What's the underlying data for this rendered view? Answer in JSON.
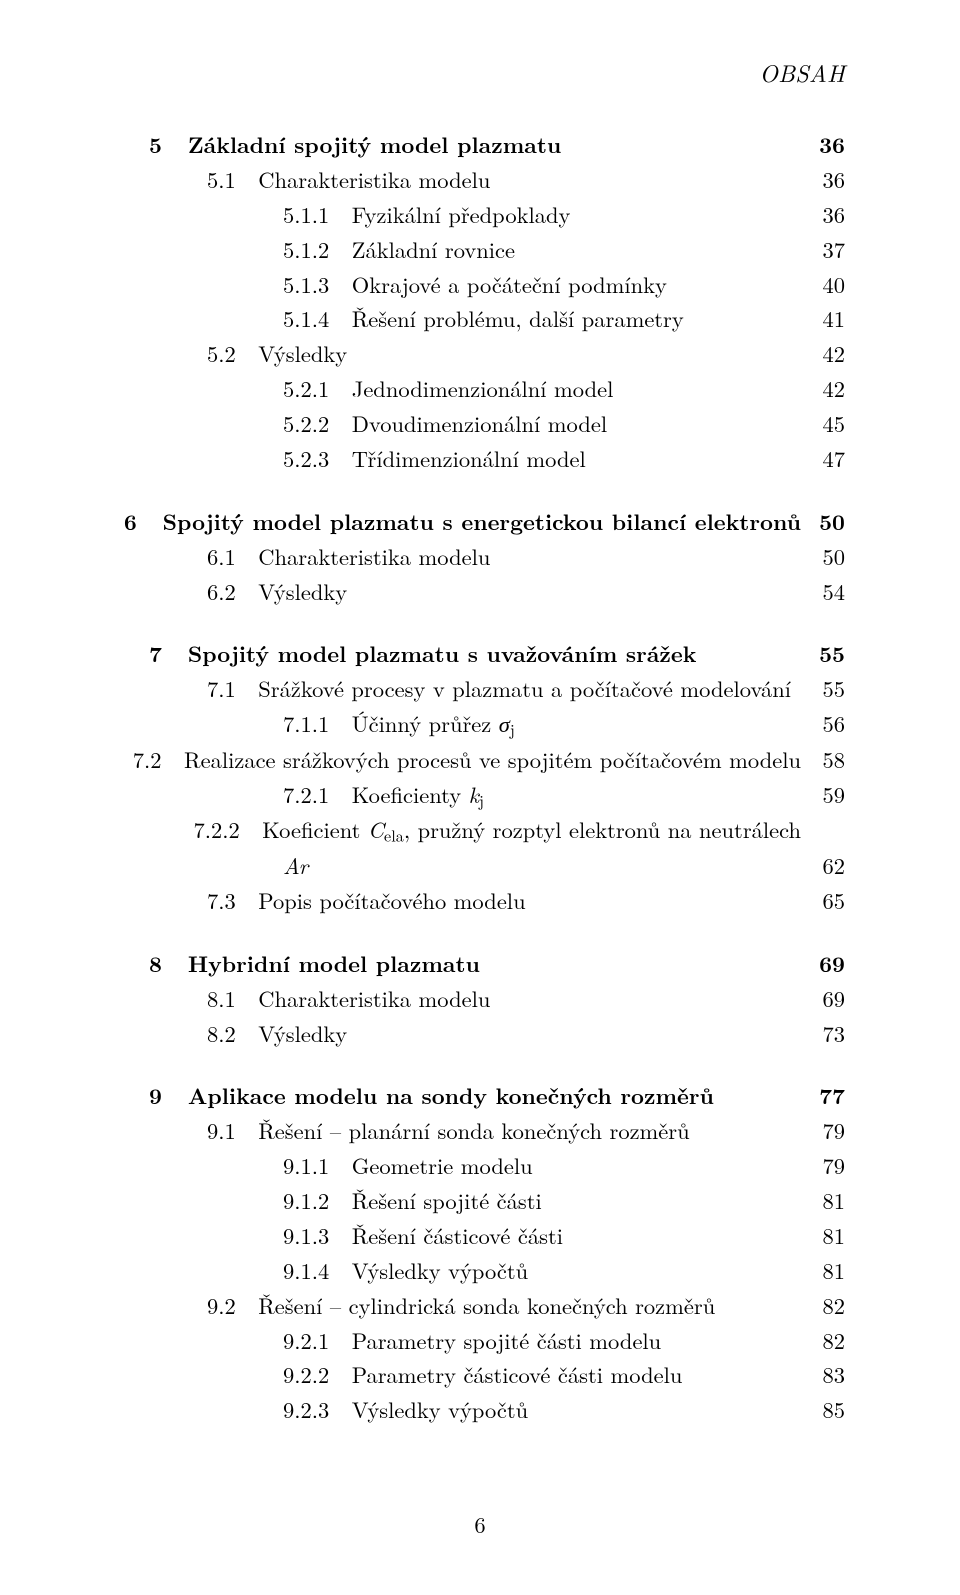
{
  "header": {
    "running_head": "OBSAH"
  },
  "footer": {
    "page_number": "6"
  },
  "sections": [
    {
      "chapter_num": "5",
      "chapter_title_html": "Základní spojitý model plazmatu",
      "chapter_page": "36",
      "entries": [
        {
          "level": 1,
          "num": "5.1",
          "title_html": "Charakteristika modelu",
          "page": "36"
        },
        {
          "level": 2,
          "num": "5.1.1",
          "title_html": "Fyzikální předpoklady",
          "page": "36"
        },
        {
          "level": 2,
          "num": "5.1.2",
          "title_html": "Základní rovnice",
          "page": "37"
        },
        {
          "level": 2,
          "num": "5.1.3",
          "title_html": "Okrajové a počáteční podmínky",
          "page": "40"
        },
        {
          "level": 2,
          "num": "5.1.4",
          "title_html": "Řešení problému, další parametry",
          "page": "41"
        },
        {
          "level": 1,
          "num": "5.2",
          "title_html": "Výsledky",
          "page": "42"
        },
        {
          "level": 2,
          "num": "5.2.1",
          "title_html": "Jednodimenzionální model",
          "page": "42"
        },
        {
          "level": 2,
          "num": "5.2.2",
          "title_html": "Dvoudimenzionální model",
          "page": "45"
        },
        {
          "level": 2,
          "num": "5.2.3",
          "title_html": "Třídimenzionální model",
          "page": "47"
        }
      ]
    },
    {
      "chapter_num": "6",
      "chapter_title_html": "Spojitý model plazmatu s energetickou bilancí elektronů",
      "chapter_page": "50",
      "entries": [
        {
          "level": 1,
          "num": "6.1",
          "title_html": "Charakteristika modelu",
          "page": "50"
        },
        {
          "level": 1,
          "num": "6.2",
          "title_html": "Výsledky",
          "page": "54"
        }
      ]
    },
    {
      "chapter_num": "7",
      "chapter_title_html": "Spojitý model plazmatu s uvažováním srážek",
      "chapter_page": "55",
      "entries": [
        {
          "level": 1,
          "num": "7.1",
          "title_html": "Srážkové procesy v plazmatu a počítačové modelování",
          "page": "55"
        },
        {
          "level": 2,
          "num": "7.1.1",
          "title_html": "Účinný průřez <span class=\"math-it\">σ</span><sub>j</sub>",
          "page": "56"
        },
        {
          "level": 1,
          "num": "7.2",
          "title_html": "Realizace srážkových procesů ve spojitém počítačovém modelu",
          "page": "58",
          "noleader": true
        },
        {
          "level": 2,
          "num": "7.2.1",
          "title_html": "Koeficienty <span class=\"math-it\">k</span><sub>j</sub>",
          "page": "59"
        },
        {
          "level": 2,
          "num": "7.2.2",
          "title_html": "Koeficient <span class=\"math-it\">C</span><sub>ela</sub>, pružný rozptyl elektronů na neutrálech",
          "second_line_html": "<span class=\"math-it\">Ar</span>",
          "page": "62"
        },
        {
          "level": 1,
          "num": "7.3",
          "title_html": "Popis počítačového modelu",
          "page": "65"
        }
      ]
    },
    {
      "chapter_num": "8",
      "chapter_title_html": "Hybridní model plazmatu",
      "chapter_page": "69",
      "entries": [
        {
          "level": 1,
          "num": "8.1",
          "title_html": "Charakteristika modelu",
          "page": "69"
        },
        {
          "level": 1,
          "num": "8.2",
          "title_html": "Výsledky",
          "page": "73"
        }
      ]
    },
    {
      "chapter_num": "9",
      "chapter_title_html": "Aplikace modelu na sondy konečných rozměrů",
      "chapter_page": "77",
      "entries": [
        {
          "level": 1,
          "num": "9.1",
          "title_html": "Řešení – planární sonda konečných rozměrů",
          "page": "79"
        },
        {
          "level": 2,
          "num": "9.1.1",
          "title_html": "Geometrie modelu",
          "page": "79"
        },
        {
          "level": 2,
          "num": "9.1.2",
          "title_html": "Řešení spojité části",
          "page": "81"
        },
        {
          "level": 2,
          "num": "9.1.3",
          "title_html": "Řešení částicové části",
          "page": "81"
        },
        {
          "level": 2,
          "num": "9.1.4",
          "title_html": "Výsledky výpočtů",
          "page": "81"
        },
        {
          "level": 1,
          "num": "9.2",
          "title_html": "Řešení – cylindrická sonda konečných rozměrů",
          "page": "82"
        },
        {
          "level": 2,
          "num": "9.2.1",
          "title_html": "Parametry spojité části modelu",
          "page": "82"
        },
        {
          "level": 2,
          "num": "9.2.2",
          "title_html": "Parametry částicové části modelu",
          "page": "83"
        },
        {
          "level": 2,
          "num": "9.2.3",
          "title_html": "Výsledky výpočtů",
          "page": "85"
        }
      ]
    }
  ]
}
